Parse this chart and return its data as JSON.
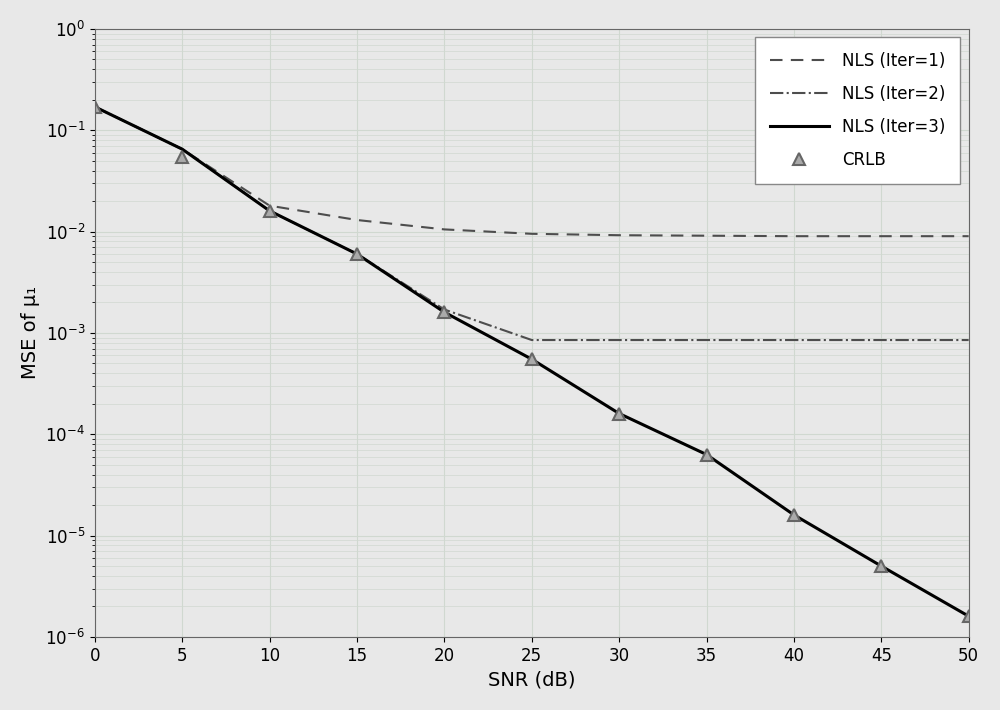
{
  "snr": [
    0,
    5,
    10,
    15,
    20,
    25,
    30,
    35,
    40,
    45,
    50
  ],
  "nls1": [
    0.17,
    0.065,
    0.018,
    0.013,
    0.0105,
    0.0095,
    0.0092,
    0.0091,
    0.009,
    0.009,
    0.009
  ],
  "nls2": [
    0.17,
    0.065,
    0.016,
    0.006,
    0.0017,
    0.00085,
    0.00085,
    0.00085,
    0.00085,
    0.00085,
    0.00085
  ],
  "nls3": [
    0.17,
    0.065,
    0.016,
    0.006,
    0.0016,
    0.00055,
    0.00016,
    6.3e-05,
    1.6e-05,
    5e-06,
    1.6e-06
  ],
  "crlb": [
    0.17,
    0.055,
    0.016,
    0.006,
    0.0016,
    0.00055,
    0.00016,
    6.3e-05,
    1.6e-05,
    5e-06,
    1.6e-06
  ],
  "xlabel": "SNR (dB)",
  "ylabel": "MSE of μ₁",
  "ylim_min": 1e-06,
  "ylim_max": 1.0,
  "xlim_min": 0,
  "xlim_max": 50,
  "line_color": "#4d4d4d",
  "crlb_color": "#666666",
  "background_color": "#e8e8e8",
  "grid_color": "#d0d8d0",
  "legend_labels": [
    "NLS (Iter=1)",
    "NLS (Iter=2)",
    "NLS (Iter=3)",
    "CRLB"
  ],
  "tick_fontsize": 12,
  "label_fontsize": 14,
  "legend_fontsize": 12
}
